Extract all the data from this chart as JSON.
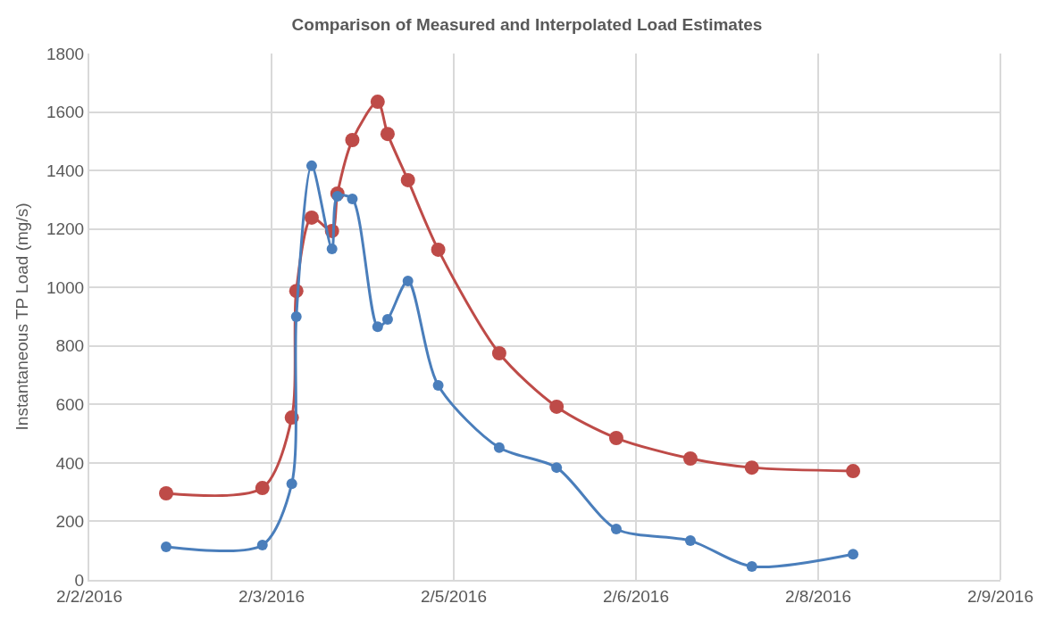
{
  "chart_data": {
    "type": "line",
    "title": "Comparison of Measured and Interpolated Load Estimates",
    "ylabel": "Instantaneous TP Load (mg/s)",
    "x": [
      "2016-02-02T14:10",
      "2016-02-03T07:55",
      "2016-02-03T13:20",
      "2016-02-03T14:10",
      "2016-02-03T17:00",
      "2016-02-03T20:45",
      "2016-02-03T21:45",
      "2016-02-04T00:30",
      "2016-02-04T05:10",
      "2016-02-04T07:00",
      "2016-02-04T10:45",
      "2016-02-04T16:20",
      "2016-02-05T03:35",
      "2016-02-05T14:10",
      "2016-02-06T01:10",
      "2016-02-06T14:50",
      "2016-02-07T02:10",
      "2016-02-07T20:50"
    ],
    "series": [
      {
        "color": "#4a7ebb",
        "values": [
          113,
          119,
          329,
          900,
          1416,
          1132,
          1312,
          1303,
          866,
          891,
          1022,
          665,
          452,
          384,
          174,
          134,
          46,
          88
        ]
      },
      {
        "color": "#be4b48",
        "values": [
          296,
          314,
          555,
          988,
          1239,
          1193,
          1321,
          1504,
          1635,
          1525,
          1367,
          1129,
          775,
          592,
          485,
          415,
          384,
          372
        ]
      }
    ],
    "xlim": [
      "2016-02-02T00:00",
      "2016-02-09T00:00"
    ],
    "xticks": [
      {
        "value": "2016-02-02T00:00",
        "label": "2/2/2016"
      },
      {
        "value": "2016-02-03T09:36",
        "label": "2/3/2016"
      },
      {
        "value": "2016-02-04T19:12",
        "label": "2/5/2016"
      },
      {
        "value": "2016-02-06T04:48",
        "label": "2/6/2016"
      },
      {
        "value": "2016-02-07T14:24",
        "label": "2/8/2016"
      },
      {
        "value": "2016-02-09T00:00",
        "label": "2/9/2016"
      }
    ],
    "ylim": [
      0,
      1800
    ],
    "yticks": [
      0,
      200,
      400,
      600,
      800,
      1000,
      1200,
      1400,
      1600,
      1800
    ],
    "grid": true,
    "marker": "circle",
    "line_style": "solid"
  }
}
